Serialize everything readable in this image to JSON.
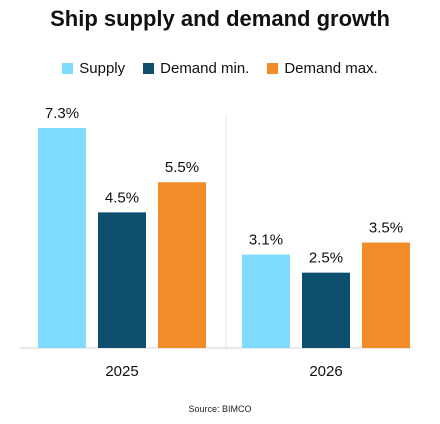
{
  "chart_data": {
    "type": "bar",
    "title": "Ship supply and demand growth",
    "categories": [
      "2025",
      "2026"
    ],
    "series": [
      {
        "name": "Supply",
        "color": "#7fdcff",
        "values": [
          7.3,
          3.1
        ],
        "labels": [
          "7.3%",
          "3.1%"
        ]
      },
      {
        "name": "Demand min.",
        "color": "#0f4f6e",
        "values": [
          4.5,
          2.5
        ],
        "labels": [
          "4.5%",
          "2.5%"
        ]
      },
      {
        "name": "Demand max.",
        "color": "#f28c28",
        "values": [
          5.5,
          3.5
        ],
        "labels": [
          "5.5%",
          "3.5%"
        ]
      }
    ],
    "ylim": [
      0,
      7.3
    ],
    "grid": false,
    "legend_position": "top",
    "source": "Source: BIMCO"
  }
}
